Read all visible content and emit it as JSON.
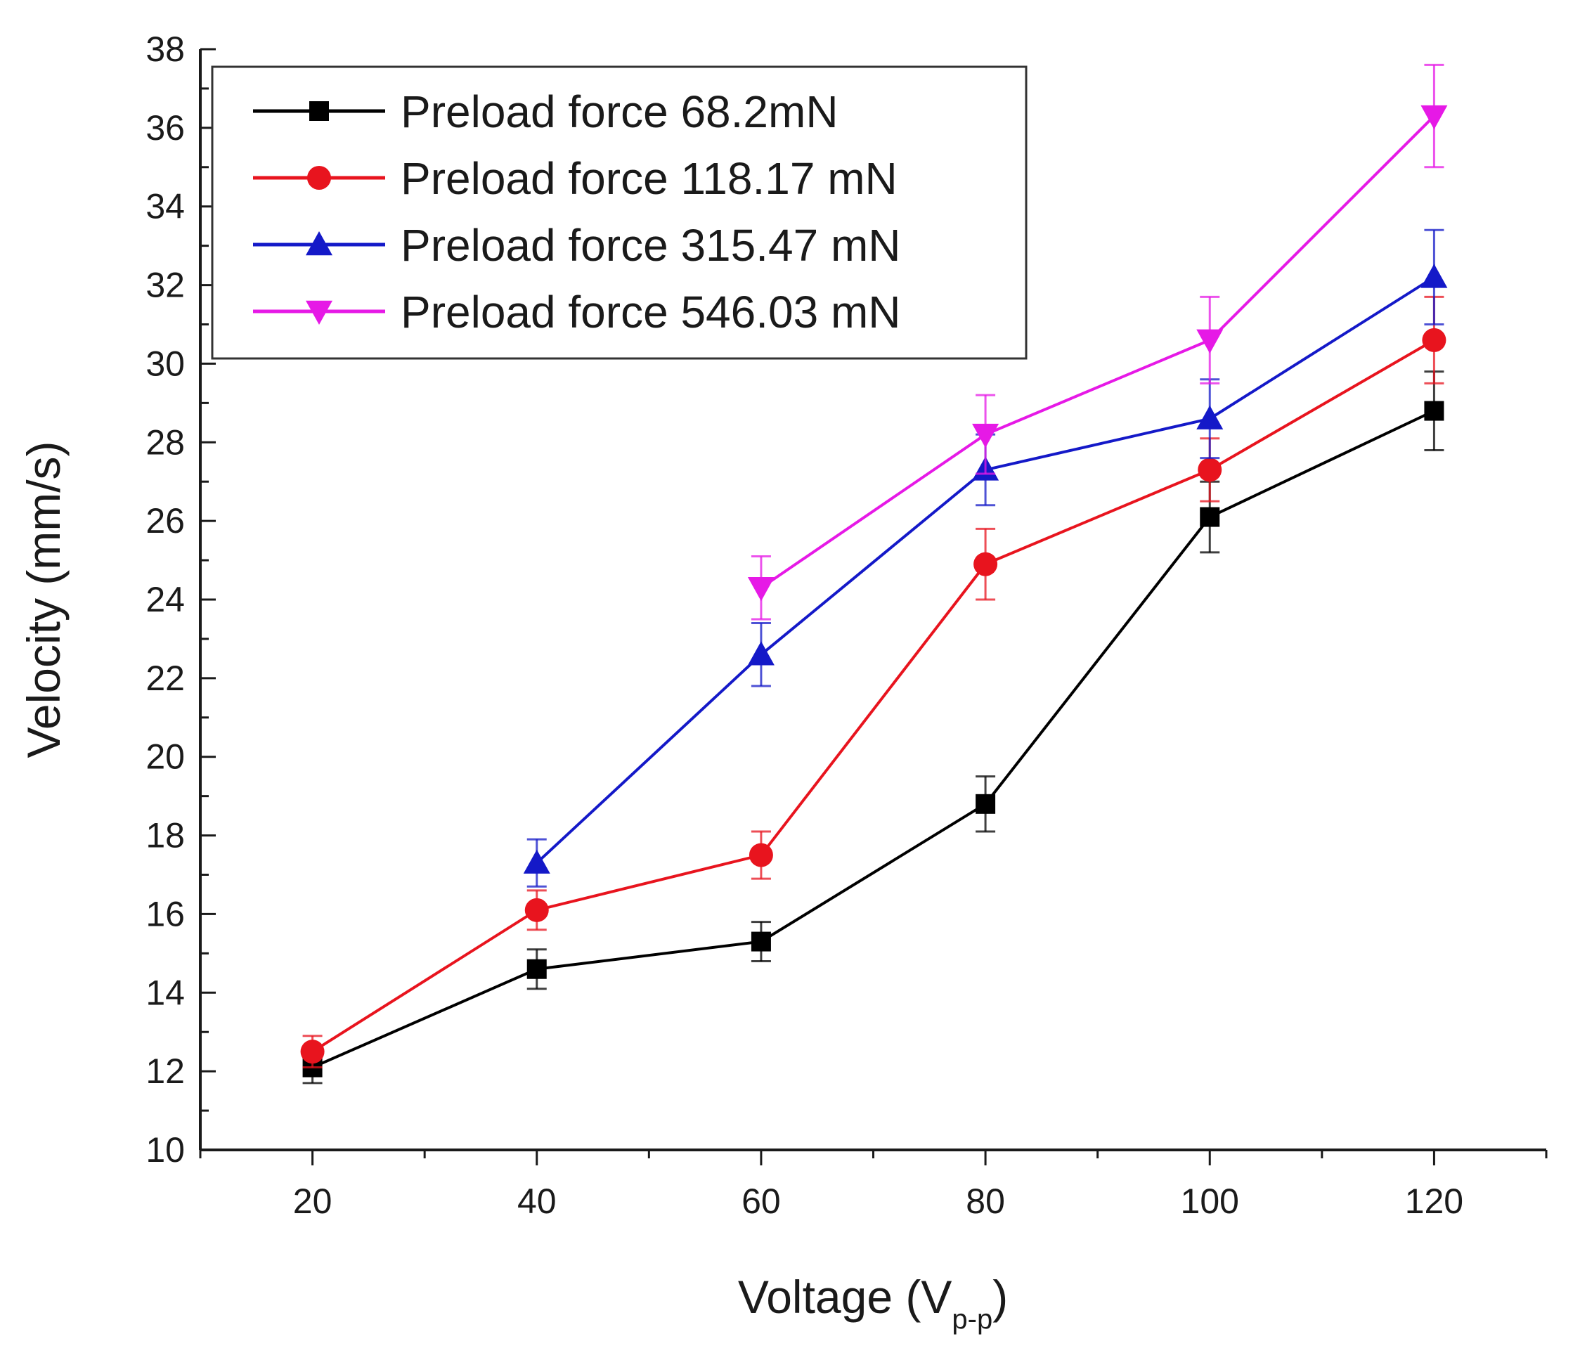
{
  "chart_data": {
    "type": "line",
    "title": "",
    "xlabel_main": "Voltage (V",
    "xlabel_sub": "p-p",
    "xlabel_close": ")",
    "ylabel": "Velocity (mm/s)",
    "x": [
      20,
      40,
      60,
      80,
      100,
      120
    ],
    "xticks": [
      "20",
      "40",
      "60",
      "80",
      "100",
      "120"
    ],
    "xlim": [
      10,
      130
    ],
    "ylim": [
      10,
      38
    ],
    "yticks": [
      "10",
      "12",
      "14",
      "16",
      "18",
      "20",
      "22",
      "24",
      "26",
      "28",
      "30",
      "32",
      "34",
      "36",
      "38"
    ],
    "legend_position": "top-left",
    "series": [
      {
        "name": "Preload force 68.2mN",
        "color": "#000000",
        "marker": "square",
        "x": [
          20,
          40,
          60,
          80,
          100,
          120
        ],
        "values": [
          12.1,
          14.6,
          15.3,
          18.8,
          26.1,
          28.8
        ],
        "errors": [
          0.4,
          0.5,
          0.5,
          0.7,
          0.9,
          1.0
        ]
      },
      {
        "name": "Preload force 118.17 mN",
        "color": "#e8141e",
        "marker": "circle",
        "x": [
          20,
          40,
          60,
          80,
          100,
          120
        ],
        "values": [
          12.5,
          16.1,
          17.5,
          24.9,
          27.3,
          30.6
        ],
        "errors": [
          0.4,
          0.5,
          0.6,
          0.9,
          0.8,
          1.1
        ]
      },
      {
        "name": "Preload force 315.47 mN",
        "color": "#1419c8",
        "marker": "triangle-up",
        "x": [
          40,
          60,
          80,
          100,
          120
        ],
        "values": [
          17.3,
          22.6,
          27.3,
          28.6,
          32.2
        ],
        "errors": [
          0.6,
          0.8,
          0.9,
          1.0,
          1.2
        ]
      },
      {
        "name": "Preload force 546.03 mN",
        "color": "#e619e6",
        "marker": "triangle-down",
        "x": [
          60,
          80,
          100,
          120
        ],
        "values": [
          24.3,
          28.2,
          30.6,
          36.3
        ],
        "errors": [
          0.8,
          1.0,
          1.1,
          1.3
        ]
      }
    ]
  }
}
